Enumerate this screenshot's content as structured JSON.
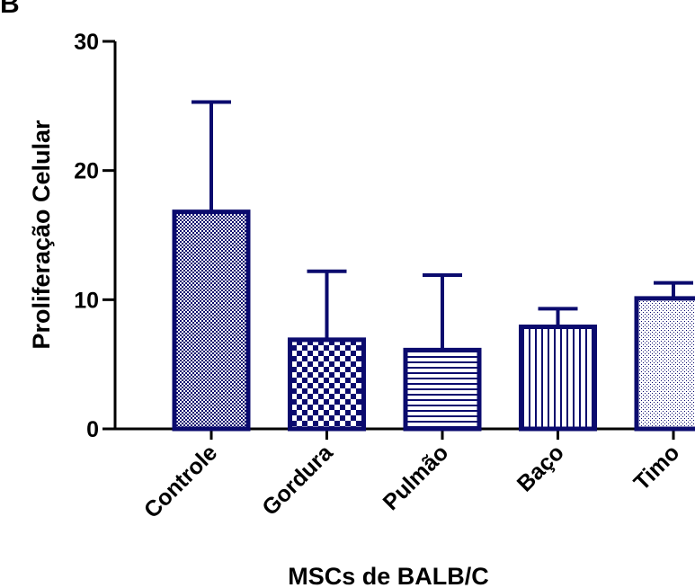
{
  "panel_letter": "B",
  "chart_data": {
    "type": "bar",
    "title": "",
    "xlabel": "MSCs de BALB/C",
    "ylabel": "Proliferação Celular",
    "categories": [
      "Controle",
      "Gordura",
      "Pulmão",
      "Baço",
      "Timo"
    ],
    "values": [
      16.8,
      6.9,
      6.1,
      7.9,
      10.1
    ],
    "error_upper": [
      25.3,
      12.2,
      11.9,
      9.3,
      11.3
    ],
    "ylim": [
      0,
      30
    ],
    "yticks": [
      0,
      10,
      20,
      30
    ],
    "grid": false,
    "fill_patterns": [
      "fine-crosshatch",
      "checkerboard",
      "horizontal-lines",
      "vertical-lines",
      "dots"
    ],
    "bar_color": "#0b0b6e",
    "axis_color": "#000000"
  }
}
